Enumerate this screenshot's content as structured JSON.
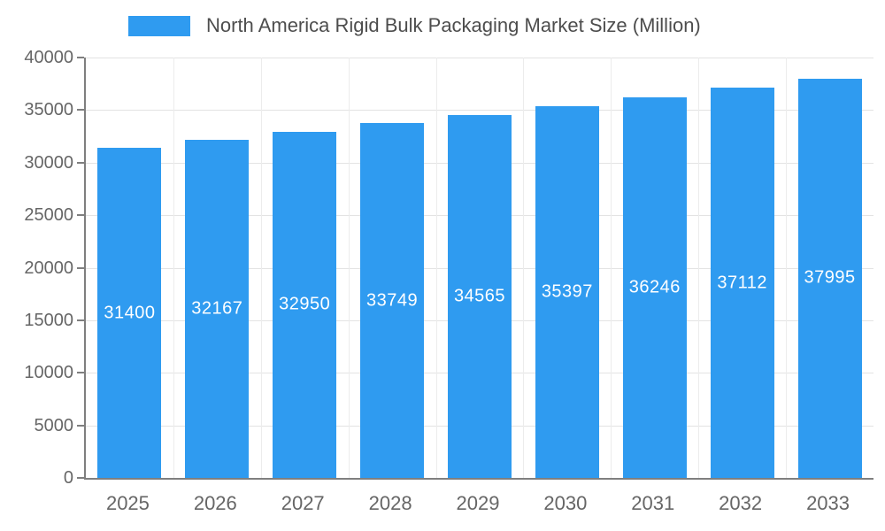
{
  "chart_data": {
    "type": "bar",
    "title": "North America Rigid Bulk Packaging Market Size (Million)",
    "categories": [
      "2025",
      "2026",
      "2027",
      "2028",
      "2029",
      "2030",
      "2031",
      "2032",
      "2033"
    ],
    "values": [
      31400,
      32167,
      32950,
      33749,
      34565,
      35397,
      36246,
      37112,
      37995
    ],
    "xlabel": "",
    "ylabel": "",
    "ylim": [
      0,
      40000
    ],
    "ytick_step": 5000,
    "ytick_labels": [
      "0",
      "5000",
      "10000",
      "15000",
      "20000",
      "25000",
      "30000",
      "35000",
      "40000"
    ],
    "grid": true,
    "legend_position": "top",
    "legend_entries": [
      "North America Rigid Bulk Packaging Market Size (Million)"
    ],
    "colors": {
      "bar": "#2F9BF0",
      "bar_value_label": "#FFFFFF",
      "axis_line": "#7F7F7F",
      "axis_text": "#666666",
      "legend_text": "#4D4D4D",
      "gridline": "#E3E3E3",
      "background": "#FFFFFF"
    }
  }
}
